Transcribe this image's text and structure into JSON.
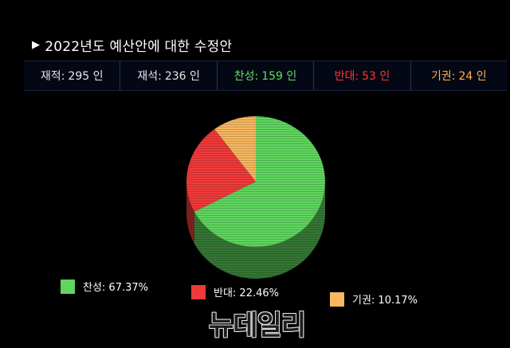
{
  "header": {
    "title": "2022년도 예산안에 대한 수정안"
  },
  "stats": [
    {
      "label": "재적:",
      "value": "295 인",
      "color": "#e6e6e6"
    },
    {
      "label": "재석:",
      "value": "236 인",
      "color": "#e6e6e6"
    },
    {
      "label": "찬성:",
      "value": "159 인",
      "color": "#5fe05f"
    },
    {
      "label": "반대:",
      "value": "53 인",
      "color": "#ff3535"
    },
    {
      "label": "기권:",
      "value": "24 인",
      "color": "#ffb14a"
    }
  ],
  "chart_data": {
    "type": "pie",
    "slices": [
      {
        "label": "찬성",
        "value": 67.37,
        "display": "찬성: 67.37%",
        "color": "#5fd65f"
      },
      {
        "label": "반대",
        "value": 22.46,
        "display": "반대: 22.46%",
        "color": "#f03a3a"
      },
      {
        "label": "기권",
        "value": 10.17,
        "display": "기권: 10.17%",
        "color": "#f7b860"
      }
    ],
    "style": "3d",
    "legend_position": "bottom"
  },
  "watermark": "뉴데일리"
}
